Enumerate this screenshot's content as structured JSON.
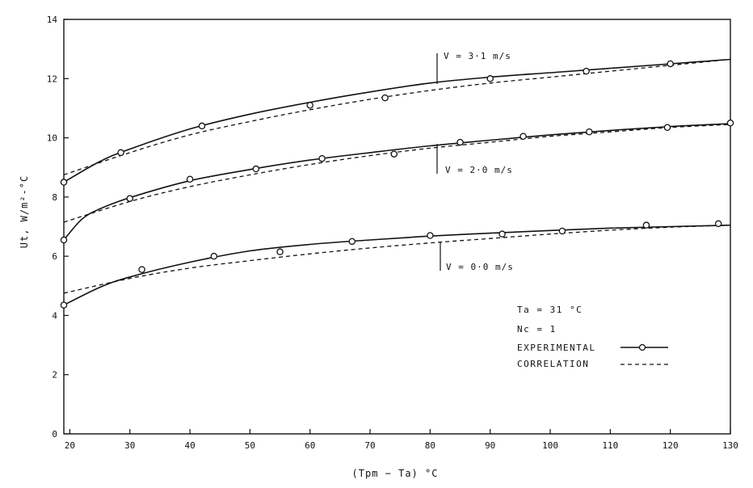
{
  "chart_data": {
    "type": "line",
    "xlabel": "(Tpm − Ta) °C",
    "ylabel": "Ut, W/m²-°C",
    "xlim": [
      19,
      130
    ],
    "ylim": [
      0,
      14
    ],
    "xticks": [
      20,
      30,
      40,
      50,
      60,
      70,
      80,
      90,
      100,
      110,
      120,
      130
    ],
    "yticks": [
      0,
      2,
      4,
      6,
      8,
      10,
      12,
      14
    ],
    "series": [
      {
        "name": "V = 3·1 m/s",
        "experimental": {
          "x": [
            19,
            28.5,
            42,
            60,
            72.5,
            90,
            106,
            120
          ],
          "y": [
            8.5,
            9.5,
            10.4,
            11.1,
            11.35,
            12.0,
            12.25,
            12.5
          ]
        },
        "fit": {
          "x": [
            19,
            25,
            30,
            40,
            50,
            60,
            70,
            80,
            90,
            100,
            110,
            120,
            130
          ],
          "y": [
            8.5,
            9.2,
            9.62,
            10.3,
            10.8,
            11.2,
            11.55,
            11.85,
            12.05,
            12.2,
            12.35,
            12.5,
            12.65
          ]
        },
        "correlation": {
          "x": [
            19,
            30,
            40,
            50,
            60,
            70,
            80,
            90,
            100,
            110,
            120,
            130
          ],
          "y": [
            8.75,
            9.5,
            10.1,
            10.55,
            10.95,
            11.3,
            11.6,
            11.85,
            12.05,
            12.25,
            12.45,
            12.65
          ]
        }
      },
      {
        "name": "V = 2·0 m/s",
        "experimental": {
          "x": [
            19,
            30,
            40,
            51,
            62,
            74,
            85,
            95.5,
            106.5,
            119.5,
            130
          ],
          "y": [
            6.55,
            7.95,
            8.6,
            8.95,
            9.3,
            9.45,
            9.85,
            10.05,
            10.2,
            10.35,
            10.5
          ]
        },
        "fit": {
          "x": [
            19,
            22,
            25,
            30,
            40,
            50,
            60,
            70,
            80,
            90,
            100,
            110,
            120,
            130
          ],
          "y": [
            6.55,
            7.25,
            7.6,
            7.98,
            8.55,
            8.93,
            9.25,
            9.5,
            9.73,
            9.92,
            10.1,
            10.25,
            10.38,
            10.48
          ]
        },
        "correlation": {
          "x": [
            19,
            30,
            40,
            50,
            60,
            70,
            80,
            90,
            100,
            110,
            120,
            130
          ],
          "y": [
            7.15,
            7.85,
            8.35,
            8.75,
            9.1,
            9.4,
            9.65,
            9.85,
            10.05,
            10.2,
            10.35,
            10.45
          ]
        }
      },
      {
        "name": "V = 0·0 m/s",
        "experimental": {
          "x": [
            19,
            32,
            44,
            55,
            67,
            80,
            92,
            102,
            116,
            128
          ],
          "y": [
            4.35,
            5.55,
            6.0,
            6.15,
            6.5,
            6.7,
            6.75,
            6.85,
            7.05,
            7.1
          ]
        },
        "fit": {
          "x": [
            19,
            25,
            30,
            40,
            50,
            60,
            70,
            80,
            90,
            100,
            110,
            120,
            130
          ],
          "y": [
            4.35,
            4.95,
            5.3,
            5.8,
            6.18,
            6.4,
            6.55,
            6.68,
            6.78,
            6.87,
            6.95,
            7.0,
            7.05
          ]
        },
        "correlation": {
          "x": [
            19,
            30,
            40,
            50,
            60,
            70,
            80,
            90,
            100,
            110,
            120,
            130
          ],
          "y": [
            4.75,
            5.25,
            5.6,
            5.85,
            6.08,
            6.28,
            6.45,
            6.6,
            6.75,
            6.88,
            6.98,
            7.05
          ]
        }
      }
    ],
    "series_labels": [
      "V = 3·1 m/s",
      "V = 2·0 m/s",
      "V = 0·0 m/s"
    ],
    "annotations": [
      "Ta = 31 °C",
      "Nc = 1"
    ],
    "legend": {
      "placement": "bottom-right",
      "entries": [
        "EXPERIMENTAL",
        "CORRELATION"
      ]
    },
    "grid": false
  }
}
